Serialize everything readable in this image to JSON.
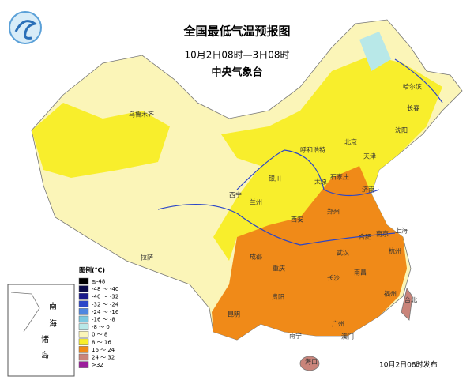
{
  "header": {
    "title": "全国最低气温预报图",
    "subtitle": "10月2日08时—3日08时",
    "issuer": "中央气象台"
  },
  "legend": {
    "title": "图例(℃)",
    "items": [
      {
        "label": "≤-48",
        "color": "#000000"
      },
      {
        "label": "-48 ～ -40",
        "color": "#0b0b4a"
      },
      {
        "label": "-40 ～ -32",
        "color": "#1a1a8c"
      },
      {
        "label": "-32 ～ -24",
        "color": "#2a45c8"
      },
      {
        "label": "-24 ～ -16",
        "color": "#4f86e0"
      },
      {
        "label": "-16 ～ -8",
        "color": "#7cc8e0"
      },
      {
        "label": "-8 ～ 0",
        "color": "#b8e8e8"
      },
      {
        "label": "0 ～ 8",
        "color": "#fbf5b8"
      },
      {
        "label": "8 ～ 16",
        "color": "#f8ee2c"
      },
      {
        "label": "16 ～ 24",
        "color": "#f08a18"
      },
      {
        "label": "24 ～ 32",
        "color": "#c9847a"
      },
      {
        "label": ">32",
        "color": "#9c1e9c"
      }
    ]
  },
  "cities": [
    "乌鲁木齐",
    "拉萨",
    "西宁",
    "兰州",
    "银川",
    "呼和浩特",
    "北京",
    "天津",
    "石家庄",
    "太原",
    "济南",
    "郑州",
    "西安",
    "成都",
    "重庆",
    "武汉",
    "合肥",
    "南京",
    "上海",
    "杭州",
    "长沙",
    "南昌",
    "福州",
    "贵阳",
    "昆明",
    "南宁",
    "广州",
    "海口",
    "台北",
    "哈尔滨",
    "长春",
    "沈阳",
    "澳门"
  ],
  "inset": {
    "labels": [
      "南",
      "海",
      "诸",
      "岛"
    ]
  },
  "footer": "10月2日08时发布"
}
